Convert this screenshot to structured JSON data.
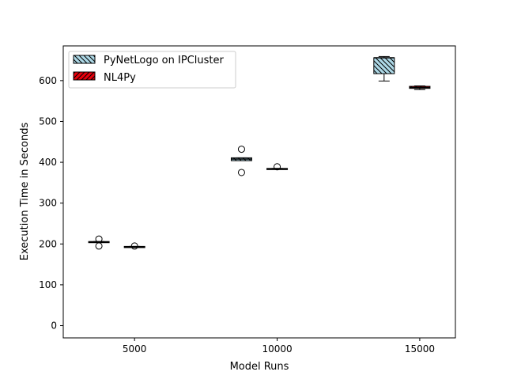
{
  "chart_data": {
    "type": "box",
    "xlabel": "Model Runs",
    "ylabel": "Execution Time in Seconds",
    "xlim": [
      2500,
      16250
    ],
    "ylim": [
      -30,
      685
    ],
    "x_ticks": [
      5000,
      10000,
      15000
    ],
    "x_tick_labels": [
      "5000",
      "10000",
      "15000"
    ],
    "y_ticks": [
      0,
      100,
      200,
      300,
      400,
      500,
      600
    ],
    "y_tick_labels": [
      "0",
      "100",
      "200",
      "300",
      "400",
      "500",
      "600"
    ],
    "grid": false,
    "legend_position": "upper-left",
    "series": [
      {
        "name": "PyNetLogo on IPCluster",
        "color": "#add8e6",
        "hatch": "backslash",
        "boxes": [
          {
            "x": 3750,
            "whislo": 205,
            "q1": 205,
            "med": 205,
            "q3": 206,
            "whishi": 206,
            "fliers": [
              195,
              212
            ]
          },
          {
            "x": 8750,
            "whislo": 404,
            "q1": 404,
            "med": 408,
            "q3": 411,
            "whishi": 411,
            "fliers": [
              375,
              432
            ]
          },
          {
            "x": 13750,
            "whislo": 599,
            "q1": 617,
            "med": 656,
            "q3": 656,
            "whishi": 659,
            "fliers": []
          }
        ]
      },
      {
        "name": "NL4Py",
        "color": "#e8000b",
        "hatch": "slash",
        "boxes": [
          {
            "x": 5000,
            "whislo": 193,
            "q1": 193,
            "med": 193,
            "q3": 194,
            "whishi": 194,
            "fliers": [
              195
            ]
          },
          {
            "x": 10000,
            "whislo": 383,
            "q1": 383,
            "med": 384,
            "q3": 385,
            "whishi": 385,
            "fliers": [
              389
            ]
          },
          {
            "x": 15000,
            "whislo": 578,
            "q1": 581,
            "med": 583,
            "q3": 586,
            "whishi": 587,
            "fliers": []
          }
        ]
      }
    ]
  }
}
